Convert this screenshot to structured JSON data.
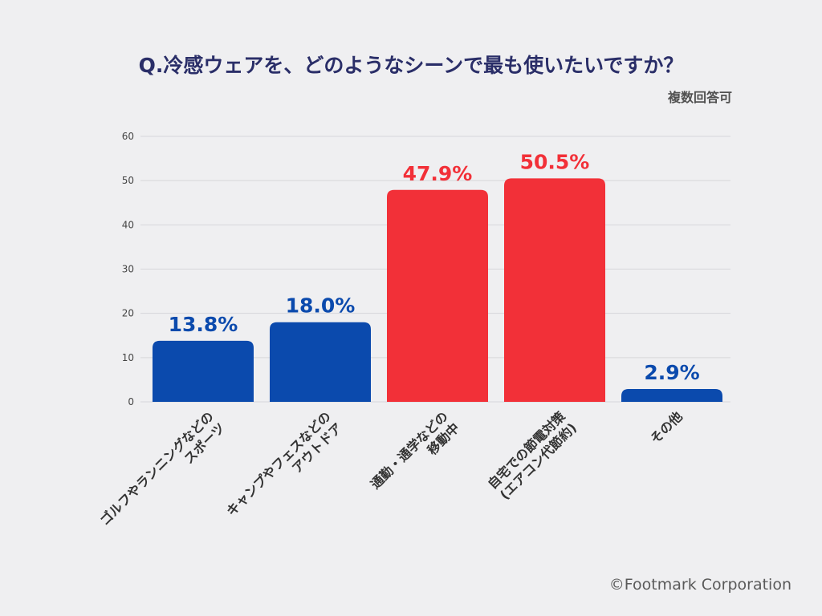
{
  "title": "Q.冷感ウェアを、どのようなシーンで最も使いたいですか？",
  "subtitle": "複数回答可",
  "footer": "©Footmark Corporation",
  "colors": {
    "blue": "#0b4aad",
    "red": "#f23038",
    "grid": "#d6d6da",
    "tick": "#444444"
  },
  "chart_data": {
    "type": "bar",
    "categories": [
      [
        "ゴルフやランニングなどの",
        "スポーツ"
      ],
      [
        "キャンプやフェスなどの",
        "アウトドア"
      ],
      [
        "通勤・通学などの",
        "移動中"
      ],
      [
        "自宅での節電対策",
        "(エアコン代節約)"
      ],
      [
        "その他"
      ]
    ],
    "values": [
      13.8,
      18.0,
      47.9,
      50.5,
      2.9
    ],
    "data_labels": [
      "13.8%",
      "18.0%",
      "47.9%",
      "50.5%",
      "2.9%"
    ],
    "bar_colors": [
      "blue",
      "blue",
      "red",
      "red",
      "blue"
    ],
    "ylim": [
      0,
      60
    ],
    "yticks": [
      0,
      10,
      20,
      30,
      40,
      50,
      60
    ],
    "grid": true,
    "legend": "none"
  }
}
